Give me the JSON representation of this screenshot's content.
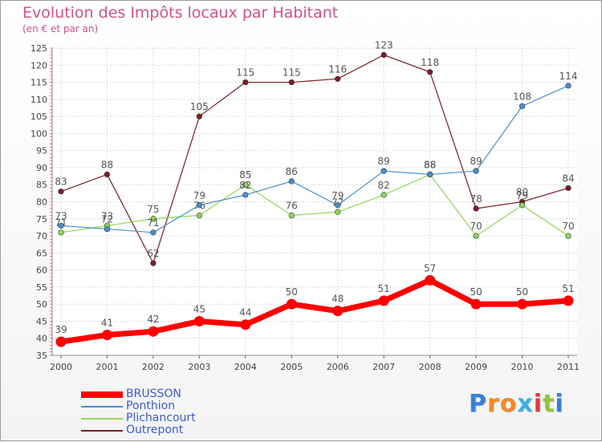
{
  "title": "Evolution des Impôts locaux par Habitant",
  "subtitle": "(en € et par an)",
  "logo": {
    "letters": [
      "P",
      "r",
      "o",
      "x",
      "i",
      "t",
      "i"
    ],
    "colors": [
      "#3a7fd5",
      "#f08a24",
      "#f08a24",
      "#3ab0e0",
      "#e03a3a",
      "#8fc63a",
      "#3a7fd5"
    ]
  },
  "chart_data": {
    "type": "line",
    "title": "Evolution des Impôts locaux par Habitant",
    "subtitle": "(en € et par an)",
    "xlabel": "",
    "ylabel": "",
    "categories": [
      "2000",
      "2001",
      "2002",
      "2003",
      "2004",
      "2005",
      "2006",
      "2007",
      "2008",
      "2009",
      "2010",
      "2011"
    ],
    "ylim": [
      35,
      125
    ],
    "yticks": [
      35,
      40,
      45,
      50,
      55,
      60,
      65,
      70,
      75,
      80,
      85,
      90,
      95,
      100,
      105,
      110,
      115,
      120,
      125
    ],
    "grid": true,
    "legend_position": "bottom-left",
    "series": [
      {
        "name": "Outrepont",
        "color": "#7a1e24",
        "values": [
          83,
          88,
          62,
          105,
          115,
          115,
          116,
          123,
          118,
          78,
          80,
          84
        ]
      },
      {
        "name": "Plichancourt",
        "color": "#8fd85a",
        "values": [
          71,
          73,
          75,
          76,
          85,
          76,
          77,
          82,
          88,
          70,
          79,
          70
        ]
      },
      {
        "name": "Ponthion",
        "color": "#4b8fd0",
        "values": [
          73,
          72,
          71,
          79,
          82,
          86,
          79,
          89,
          88,
          89,
          108,
          114
        ]
      },
      {
        "name": "BRUSSON",
        "color": "#ff0000",
        "values": [
          39,
          41,
          42,
          45,
          44,
          50,
          48,
          51,
          57,
          50,
          50,
          51
        ]
      }
    ]
  }
}
